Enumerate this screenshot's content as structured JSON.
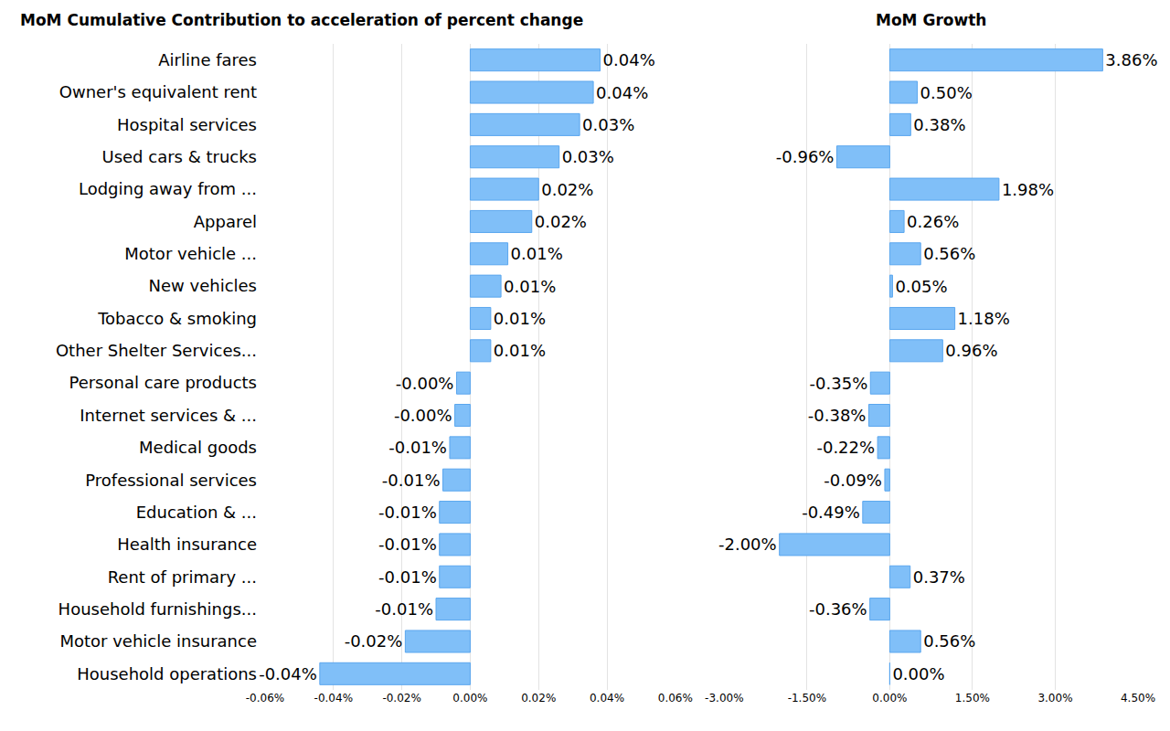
{
  "chart_data": [
    {
      "type": "bar",
      "title": "MoM Cumulative Contribution to acceleration of percent change",
      "orientation": "horizontal",
      "categories": [
        "Airline fares",
        "Owner's equivalent rent",
        "Hospital services",
        "Used cars & trucks",
        "Lodging away from ...",
        "Apparel",
        "Motor vehicle ...",
        "New vehicles",
        "Tobacco & smoking",
        "Other Shelter Services...",
        "Personal care products",
        "Internet services & ...",
        "Medical goods",
        "Professional services",
        "Education & ...",
        "Health insurance",
        "Rent of primary ...",
        "Household furnishings...",
        "Motor vehicle insurance",
        "Household operations"
      ],
      "values": [
        0.038,
        0.036,
        0.032,
        0.026,
        0.02,
        0.018,
        0.011,
        0.009,
        0.006,
        0.006,
        -0.004,
        -0.0045,
        -0.006,
        -0.008,
        -0.009,
        -0.009,
        -0.009,
        -0.01,
        -0.019,
        -0.044
      ],
      "value_labels": [
        "0.04%",
        "0.04%",
        "0.03%",
        "0.03%",
        "0.02%",
        "0.02%",
        "0.01%",
        "0.01%",
        "0.01%",
        "0.01%",
        "-0.00%",
        "-0.00%",
        "-0.01%",
        "-0.01%",
        "-0.01%",
        "-0.01%",
        "-0.01%",
        "-0.01%",
        "-0.02%",
        "-0.04%"
      ],
      "data_labels": true,
      "color": "#80bff8",
      "xlim": [
        -0.06,
        0.06
      ],
      "xticks": [
        {
          "value": -0.06,
          "label": "-0.06%"
        },
        {
          "value": -0.04,
          "label": "-0.04%"
        },
        {
          "value": -0.02,
          "label": "-0.02%"
        },
        {
          "value": 0,
          "label": "0.00%"
        },
        {
          "value": 0.02,
          "label": "0.02%"
        },
        {
          "value": 0.04,
          "label": "0.04%"
        },
        {
          "value": 0.06,
          "label": "0.06%"
        }
      ],
      "grid": true
    },
    {
      "type": "bar",
      "title": "MoM Growth",
      "orientation": "horizontal",
      "categories": [
        "Airline fares",
        "Owner's equivalent rent",
        "Hospital services",
        "Used cars & trucks",
        "Lodging away from ...",
        "Apparel",
        "Motor vehicle ...",
        "New vehicles",
        "Tobacco & smoking",
        "Other Shelter Services...",
        "Personal care products",
        "Internet services & ...",
        "Medical goods",
        "Professional services",
        "Education & ...",
        "Health insurance",
        "Rent of primary ...",
        "Household furnishings...",
        "Motor vehicle insurance",
        "Household operations"
      ],
      "values": [
        3.86,
        0.5,
        0.38,
        -0.96,
        1.98,
        0.26,
        0.56,
        0.05,
        1.18,
        0.96,
        -0.35,
        -0.38,
        -0.22,
        -0.09,
        -0.49,
        -2.0,
        0.37,
        -0.36,
        0.56,
        0.0
      ],
      "value_labels": [
        "3.86%",
        "0.50%",
        "0.38%",
        "-0.96%",
        "1.98%",
        "0.26%",
        "0.56%",
        "0.05%",
        "1.18%",
        "0.96%",
        "-0.35%",
        "-0.38%",
        "-0.22%",
        "-0.09%",
        "-0.49%",
        "-2.00%",
        "0.37%",
        "-0.36%",
        "0.56%",
        "0.00%"
      ],
      "data_labels": true,
      "color": "#80bff8",
      "xlim": [
        -3,
        4.5
      ],
      "xticks": [
        {
          "value": -3,
          "label": "-3.00%"
        },
        {
          "value": -1.5,
          "label": "-1.50%"
        },
        {
          "value": 0,
          "label": "0.00%"
        },
        {
          "value": 1.5,
          "label": "1.50%"
        },
        {
          "value": 3,
          "label": "3.00%"
        },
        {
          "value": 4.5,
          "label": "4.50%"
        }
      ],
      "grid": true,
      "tick_labels": "x"
    }
  ]
}
